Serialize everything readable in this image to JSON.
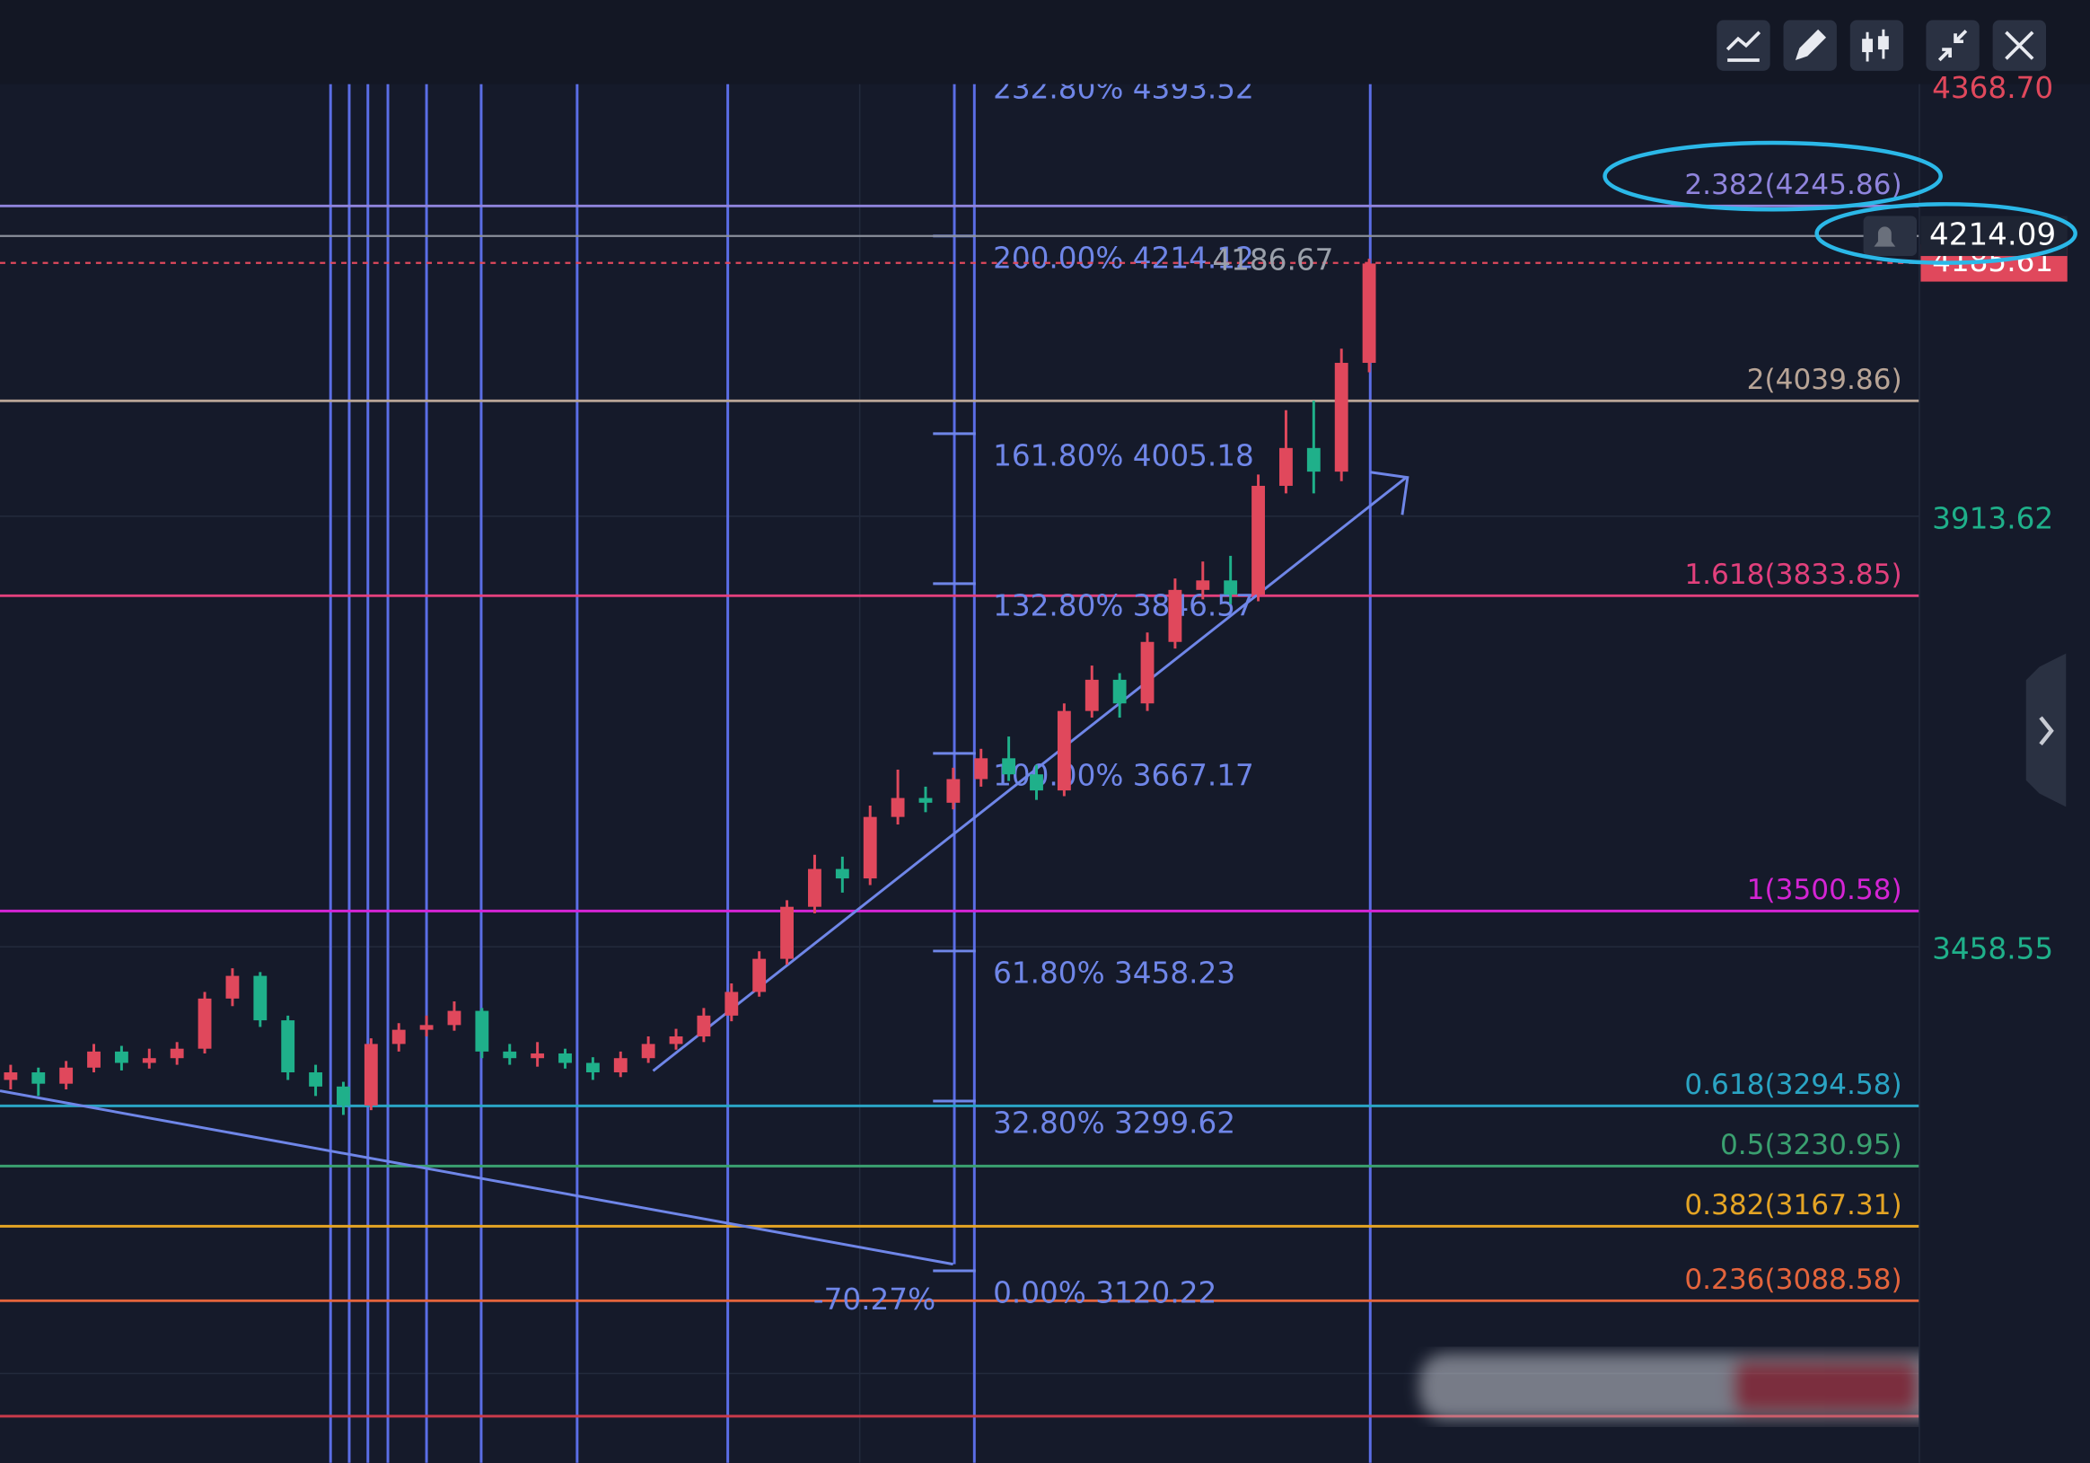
{
  "chart_data": {
    "type": "candlestick",
    "ylim": [
      2920,
      4400
    ],
    "yticks": [
      {
        "value": 4368.7,
        "label": "4368.70"
      },
      {
        "value": 3913.62,
        "label": "3913.62"
      },
      {
        "value": 3458.55,
        "label": "3458.55"
      }
    ],
    "ytick_colors": [
      "#e0485c",
      "#1fb08a",
      "#1fb08a"
    ],
    "up_color": "#e0485c",
    "down_color": "#1fb08a",
    "open": [
      3322,
      3330,
      3318,
      3335,
      3352,
      3340,
      3345,
      3355,
      3408,
      3432,
      3385,
      3330,
      3315,
      3295,
      3360,
      3375,
      3380,
      3395,
      3352,
      3345,
      3350,
      3340,
      3330,
      3345,
      3360,
      3368,
      3390,
      3415,
      3450,
      3505,
      3545,
      3535,
      3600,
      3620,
      3615,
      3640,
      3662,
      3645,
      3628,
      3712,
      3745,
      3720,
      3785,
      3840,
      3850,
      3835,
      3950,
      3990,
      3965,
      4080
    ],
    "high": [
      3338,
      3335,
      3342,
      3360,
      3358,
      3355,
      3362,
      3415,
      3440,
      3436,
      3390,
      3338,
      3320,
      3366,
      3382,
      3390,
      3405,
      3398,
      3360,
      3362,
      3355,
      3346,
      3352,
      3368,
      3376,
      3398,
      3424,
      3458,
      3512,
      3560,
      3558,
      3612,
      3650,
      3632,
      3652,
      3672,
      3685,
      3655,
      3720,
      3760,
      3752,
      3795,
      3852,
      3870,
      3876,
      3962,
      4030,
      4040,
      4095,
      4190
    ],
    "low": [
      3312,
      3305,
      3312,
      3330,
      3332,
      3334,
      3338,
      3350,
      3400,
      3378,
      3322,
      3305,
      3285,
      3290,
      3352,
      3368,
      3374,
      3345,
      3338,
      3336,
      3334,
      3322,
      3325,
      3340,
      3354,
      3362,
      3384,
      3410,
      3444,
      3498,
      3520,
      3528,
      3592,
      3605,
      3608,
      3632,
      3638,
      3618,
      3622,
      3705,
      3705,
      3712,
      3778,
      3830,
      3825,
      3828,
      3942,
      3942,
      3955,
      4070
    ],
    "close": [
      3330,
      3318,
      3335,
      3352,
      3340,
      3345,
      3355,
      3408,
      3432,
      3385,
      3330,
      3315,
      3295,
      3360,
      3375,
      3380,
      3395,
      3352,
      3345,
      3350,
      3340,
      3330,
      3345,
      3360,
      3368,
      3390,
      3415,
      3450,
      3505,
      3545,
      3535,
      3600,
      3620,
      3615,
      3640,
      3662,
      3645,
      3628,
      3712,
      3745,
      3720,
      3785,
      3840,
      3850,
      3835,
      3950,
      3990,
      3965,
      4080,
      4185
    ],
    "fib_levels": [
      {
        "label": "2.382(4245.86)",
        "value": 4245.86,
        "color": "#8f84dc"
      },
      {
        "label": "2(4039.86)",
        "value": 4039.86,
        "color": "#b8a496"
      },
      {
        "label": "1.618(3833.85)",
        "value": 3833.85,
        "color": "#e2407c"
      },
      {
        "label": "1(3500.58)",
        "value": 3500.58,
        "color": "#d424d4"
      },
      {
        "label": "0.618(3294.58)",
        "value": 3294.58,
        "color": "#2aa4c4"
      },
      {
        "label": "0.5(3230.95)",
        "value": 3230.95,
        "color": "#3aa070"
      },
      {
        "label": "0.382(3167.31)",
        "value": 3167.31,
        "color": "#e4a424"
      },
      {
        "label": "0.236(3088.58)",
        "value": 3088.58,
        "color": "#e4643c"
      }
    ],
    "extension_labels": [
      {
        "label": "232.80% 4393.52",
        "value": 4393.52
      },
      {
        "label": "200.00% 4214.12",
        "value": 4214.12
      },
      {
        "label": "161.80% 4005.18",
        "value": 4005.18
      },
      {
        "label": "132.80% 3846.57",
        "value": 3846.57
      },
      {
        "label": "100.00% 3667.17",
        "value": 3667.17
      },
      {
        "label": "61.80% 3458.23",
        "value": 3458.23
      },
      {
        "label": "32.80% 3299.62",
        "value": 3299.62
      },
      {
        "label": "0.00% 3120.22",
        "value": 3120.22
      }
    ],
    "last_price": 4185.61,
    "line_price": 4214.09,
    "high_label": 4186.67,
    "range_label": "-70.27%"
  }
}
